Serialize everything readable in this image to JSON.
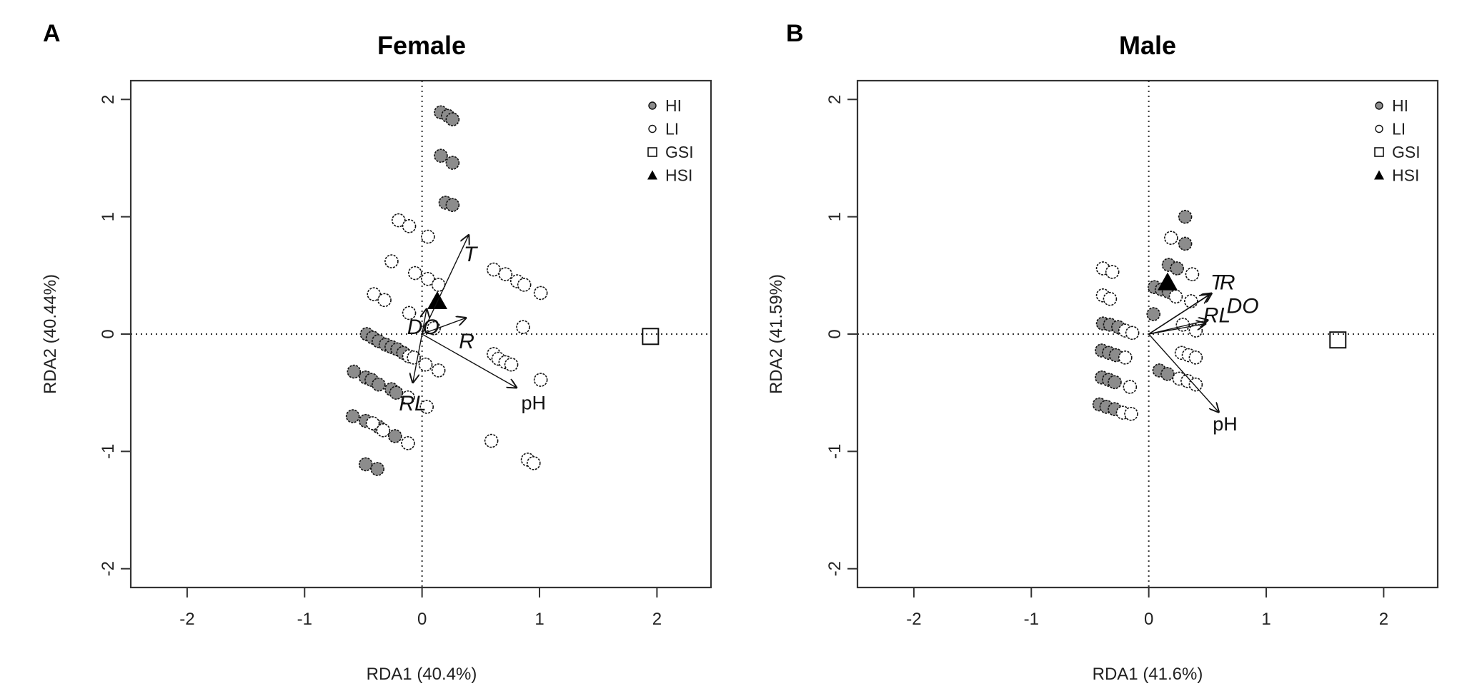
{
  "chart_data": [
    {
      "type": "scatter",
      "panel": "A",
      "title": "Female",
      "xlabel": "RDA1 (40.4%)",
      "ylabel": "RDA2 (40.44%)",
      "xlim": [
        -2.48,
        2.46
      ],
      "ylim": [
        -2.16,
        2.16
      ],
      "xticks": [
        -2,
        -1,
        0,
        1,
        2
      ],
      "yticks": [
        -2,
        -1,
        0,
        1,
        2
      ],
      "grid": false,
      "reference_lines": "dotted at x=0 and y=0",
      "legend": {
        "placement": "top-right",
        "entries": [
          {
            "label": "HI",
            "marker": "filled-circle",
            "color": "#8c8c8c"
          },
          {
            "label": "LI",
            "marker": "open-circle",
            "color": "#ffffff"
          },
          {
            "label": "GSI",
            "marker": "open-square",
            "color": "#ffffff"
          },
          {
            "label": "HSI",
            "marker": "filled-triangle",
            "color": "#000000"
          }
        ]
      },
      "series": [
        {
          "name": "HI",
          "points": [
            [
              0.16,
              1.89
            ],
            [
              0.22,
              1.86
            ],
            [
              0.26,
              1.83
            ],
            [
              0.16,
              1.52
            ],
            [
              0.26,
              1.46
            ],
            [
              0.2,
              1.12
            ],
            [
              0.26,
              1.1
            ],
            [
              -0.47,
              0.0
            ],
            [
              -0.42,
              -0.03
            ],
            [
              -0.37,
              -0.06
            ],
            [
              -0.31,
              -0.09
            ],
            [
              -0.26,
              -0.11
            ],
            [
              -0.21,
              -0.13
            ],
            [
              -0.16,
              -0.16
            ],
            [
              -0.58,
              -0.32
            ],
            [
              -0.48,
              -0.37
            ],
            [
              -0.43,
              -0.39
            ],
            [
              -0.37,
              -0.43
            ],
            [
              -0.26,
              -0.47
            ],
            [
              -0.22,
              -0.5
            ],
            [
              -0.59,
              -0.7
            ],
            [
              -0.48,
              -0.74
            ],
            [
              -0.37,
              -0.79
            ],
            [
              -0.23,
              -0.87
            ],
            [
              -0.48,
              -1.11
            ],
            [
              -0.38,
              -1.15
            ]
          ]
        },
        {
          "name": "LI",
          "points": [
            [
              -0.2,
              0.97
            ],
            [
              -0.11,
              0.92
            ],
            [
              0.05,
              0.83
            ],
            [
              -0.26,
              0.62
            ],
            [
              -0.06,
              0.52
            ],
            [
              0.05,
              0.47
            ],
            [
              0.14,
              0.42
            ],
            [
              0.61,
              0.55
            ],
            [
              0.71,
              0.51
            ],
            [
              0.81,
              0.45
            ],
            [
              0.87,
              0.42
            ],
            [
              1.01,
              0.35
            ],
            [
              -0.41,
              0.34
            ],
            [
              -0.32,
              0.29
            ],
            [
              -0.11,
              0.18
            ],
            [
              0.86,
              0.06
            ],
            [
              0.1,
              0.05
            ],
            [
              -0.11,
              -0.19
            ],
            [
              -0.07,
              -0.2
            ],
            [
              0.03,
              -0.26
            ],
            [
              0.14,
              -0.31
            ],
            [
              0.61,
              -0.17
            ],
            [
              0.65,
              -0.21
            ],
            [
              0.71,
              -0.24
            ],
            [
              0.76,
              -0.26
            ],
            [
              1.01,
              -0.39
            ],
            [
              -0.12,
              -0.54
            ],
            [
              0.04,
              -0.62
            ],
            [
              -0.42,
              -0.76
            ],
            [
              -0.33,
              -0.82
            ],
            [
              -0.12,
              -0.93
            ],
            [
              0.59,
              -0.91
            ],
            [
              0.9,
              -1.07
            ],
            [
              0.95,
              -1.1
            ]
          ]
        },
        {
          "name": "GSI",
          "points": [
            [
              1.945,
              -0.02
            ]
          ]
        },
        {
          "name": "HSI",
          "points": [
            [
              0.13,
              0.28
            ]
          ]
        }
      ],
      "vectors": [
        {
          "label": "T",
          "end": [
            0.4,
            0.85
          ],
          "label_at": [
            0.41,
            0.68
          ],
          "style": "italic"
        },
        {
          "label": "R",
          "end": [
            0.38,
            0.14
          ],
          "label_at": [
            0.38,
            -0.06
          ],
          "style": "italic"
        },
        {
          "label": "DO",
          "end": [
            0.04,
            0.22
          ],
          "label_at": [
            0.01,
            0.06
          ],
          "style": "italic"
        },
        {
          "label": "RL",
          "end": [
            -0.08,
            -0.42
          ],
          "label_at": [
            -0.08,
            -0.59
          ],
          "style": "italic"
        },
        {
          "label": "pH",
          "end": [
            0.81,
            -0.46
          ],
          "label_at": [
            0.95,
            -0.58
          ],
          "style": "upright"
        }
      ]
    },
    {
      "type": "scatter",
      "panel": "B",
      "title": "Male",
      "xlabel": "RDA1 (41.6%)",
      "ylabel": "RDA2 (41.59%)",
      "xlim": [
        -2.48,
        2.46
      ],
      "ylim": [
        -2.16,
        2.16
      ],
      "xticks": [
        -2,
        -1,
        0,
        1,
        2
      ],
      "yticks": [
        -2,
        -1,
        0,
        1,
        2
      ],
      "grid": false,
      "reference_lines": "dotted at x=0 and y=0",
      "legend": {
        "placement": "top-right",
        "entries": [
          {
            "label": "HI",
            "marker": "filled-circle",
            "color": "#8c8c8c"
          },
          {
            "label": "LI",
            "marker": "open-circle",
            "color": "#ffffff"
          },
          {
            "label": "GSI",
            "marker": "open-square",
            "color": "#ffffff"
          },
          {
            "label": "HSI",
            "marker": "filled-triangle",
            "color": "#000000"
          }
        ]
      },
      "series": [
        {
          "name": "HI",
          "points": [
            [
              0.31,
              1.0
            ],
            [
              0.31,
              0.77
            ],
            [
              0.17,
              0.59
            ],
            [
              0.24,
              0.56
            ],
            [
              0.05,
              0.4
            ],
            [
              0.11,
              0.38
            ],
            [
              0.17,
              0.36
            ],
            [
              0.04,
              0.17
            ],
            [
              -0.39,
              0.09
            ],
            [
              -0.33,
              0.08
            ],
            [
              -0.26,
              0.06
            ],
            [
              -0.4,
              -0.14
            ],
            [
              -0.34,
              -0.16
            ],
            [
              -0.28,
              -0.18
            ],
            [
              -0.4,
              -0.37
            ],
            [
              -0.34,
              -0.39
            ],
            [
              -0.29,
              -0.41
            ],
            [
              -0.42,
              -0.6
            ],
            [
              -0.36,
              -0.62
            ],
            [
              -0.29,
              -0.64
            ],
            [
              0.09,
              -0.31
            ],
            [
              0.16,
              -0.34
            ]
          ]
        },
        {
          "name": "LI",
          "points": [
            [
              0.19,
              0.82
            ],
            [
              0.37,
              0.51
            ],
            [
              -0.39,
              0.56
            ],
            [
              -0.31,
              0.53
            ],
            [
              -0.39,
              0.33
            ],
            [
              -0.33,
              0.3
            ],
            [
              0.23,
              0.32
            ],
            [
              0.36,
              0.28
            ],
            [
              0.29,
              0.08
            ],
            [
              0.4,
              0.03
            ],
            [
              -0.2,
              0.03
            ],
            [
              -0.14,
              0.01
            ],
            [
              -0.2,
              -0.2
            ],
            [
              -0.16,
              -0.45
            ],
            [
              -0.22,
              -0.67
            ],
            [
              -0.15,
              -0.68
            ],
            [
              0.28,
              -0.16
            ],
            [
              0.34,
              -0.18
            ],
            [
              0.4,
              -0.2
            ],
            [
              0.26,
              -0.38
            ],
            [
              0.33,
              -0.4
            ],
            [
              0.4,
              -0.43
            ]
          ]
        },
        {
          "name": "GSI",
          "points": [
            [
              1.61,
              -0.05
            ]
          ]
        },
        {
          "name": "HSI",
          "points": [
            [
              0.16,
              0.44
            ]
          ]
        }
      ],
      "vectors": [
        {
          "label": "T",
          "end": [
            0.52,
            0.34
          ],
          "label_at": [
            0.58,
            0.44
          ],
          "style": "italic"
        },
        {
          "label": "R",
          "end": [
            0.54,
            0.35
          ],
          "label_at": [
            0.67,
            0.44
          ],
          "style": "italic"
        },
        {
          "label": "DO",
          "end": [
            0.51,
            0.12
          ],
          "label_at": [
            0.8,
            0.24
          ],
          "style": "italic"
        },
        {
          "label": "RL",
          "end": [
            0.49,
            0.09
          ],
          "label_at": [
            0.58,
            0.16
          ],
          "style": "italic"
        },
        {
          "label": "pH",
          "end": [
            0.6,
            -0.67
          ],
          "label_at": [
            0.65,
            -0.76
          ],
          "style": "upright"
        }
      ]
    }
  ],
  "colors": {
    "hi_fill": "#8c8c8c",
    "marker_stroke": "#111111",
    "axis": "#333333",
    "text": "#222222"
  }
}
